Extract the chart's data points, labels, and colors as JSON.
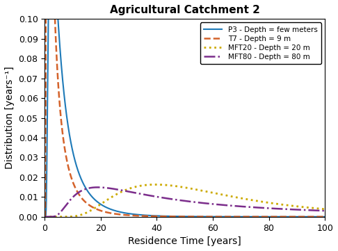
{
  "title": "Agricultural Catchment 2",
  "xlabel": "Residence Time [years]",
  "ylabel": "Distribution [years⁻¹]",
  "xlim": [
    0,
    100
  ],
  "ylim": [
    0,
    0.1
  ],
  "yticks": [
    0,
    0.01,
    0.02,
    0.03,
    0.04,
    0.05,
    0.06,
    0.07,
    0.08,
    0.09,
    0.1
  ],
  "xticks": [
    0,
    20,
    40,
    60,
    80,
    100
  ],
  "curves": [
    {
      "label": "P3 - Depth = few meters",
      "color": "#1e7ab8",
      "linestyle": "solid",
      "linewidth": 1.5,
      "mu": 7.0,
      "lambda": 8.0
    },
    {
      "label": "T7 - Depth = 9 m",
      "color": "#d4622a",
      "linestyle": "dashed",
      "linewidth": 1.8,
      "mu": 4.5,
      "lambda": 3.2
    },
    {
      "label": "MFT20 - Depth = 20 m",
      "color": "#ccaa00",
      "linestyle": "dotted",
      "linewidth": 2.0,
      "mu": 62.0,
      "lambda": 200.0
    },
    {
      "label": "MFT80 - Depth = 80 m",
      "color": "#7b2d8b",
      "linestyle": "dashdot",
      "linewidth": 1.8,
      "mu": 80.0,
      "lambda": 60.0
    }
  ],
  "background_color": "#ffffff",
  "title_fontsize": 11,
  "label_fontsize": 10,
  "tick_fontsize": 9
}
